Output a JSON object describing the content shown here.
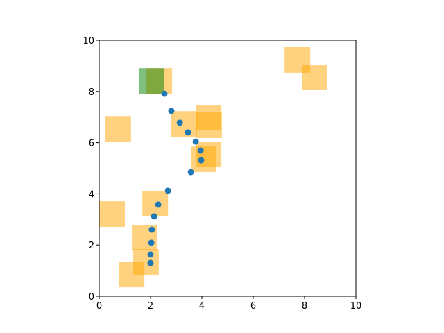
{
  "chart_data": {
    "type": "scatter",
    "x": [
      2.54,
      2.81,
      3.14,
      3.46,
      3.76,
      3.95,
      3.97,
      3.57,
      2.68,
      2.3,
      2.14,
      2.05,
      2.03,
      2.0,
      2.0
    ],
    "values": [
      7.91,
      7.24,
      6.78,
      6.4,
      6.04,
      5.69,
      5.31,
      4.85,
      4.12,
      3.58,
      3.12,
      2.6,
      2.09,
      1.63,
      1.3
    ],
    "color": "#1f77b4",
    "rectangles": [
      {
        "x": 7.22,
        "y": 8.73,
        "width": 1,
        "height": 1,
        "color": "#ffa500"
      },
      {
        "x": 7.89,
        "y": 8.05,
        "width": 1,
        "height": 1,
        "color": "#ffa500"
      },
      {
        "x": 1.84,
        "y": 7.91,
        "width": 1,
        "height": 1,
        "color": "#ffa500"
      },
      {
        "x": 1.54,
        "y": 7.91,
        "width": 1,
        "height": 1,
        "color": "#008000"
      },
      {
        "x": 0.24,
        "y": 6.04,
        "width": 1,
        "height": 1,
        "color": "#ffa500"
      },
      {
        "x": 2.81,
        "y": 6.23,
        "width": 1,
        "height": 1,
        "color": "#ffa500"
      },
      {
        "x": 3.76,
        "y": 6.48,
        "width": 1,
        "height": 1,
        "color": "#ffa500"
      },
      {
        "x": 3.78,
        "y": 6.18,
        "width": 1,
        "height": 1,
        "color": "#ffa500"
      },
      {
        "x": 3.57,
        "y": 4.85,
        "width": 1,
        "height": 1,
        "color": "#ffa500"
      },
      {
        "x": 3.76,
        "y": 5.04,
        "width": 1,
        "height": 1,
        "color": "#ffa500"
      },
      {
        "x": 1.68,
        "y": 3.12,
        "width": 1,
        "height": 1,
        "color": "#ffa500"
      },
      {
        "x": 0,
        "y": 2.71,
        "width": 1,
        "height": 1,
        "color": "#ffa500"
      },
      {
        "x": 1.27,
        "y": 1.79,
        "width": 1,
        "height": 1,
        "color": "#ffa500"
      },
      {
        "x": 1.32,
        "y": 0.84,
        "width": 1,
        "height": 1,
        "color": "#ffa500"
      },
      {
        "x": 0.76,
        "y": 0.35,
        "width": 1,
        "height": 1,
        "color": "#ffa500"
      }
    ],
    "rect_alpha": 0.5,
    "xlim": [
      0,
      10
    ],
    "ylim": [
      0,
      10
    ],
    "xticks": [
      0,
      2,
      4,
      6,
      8,
      10
    ],
    "yticks": [
      0,
      2,
      4,
      6,
      8,
      10
    ]
  }
}
